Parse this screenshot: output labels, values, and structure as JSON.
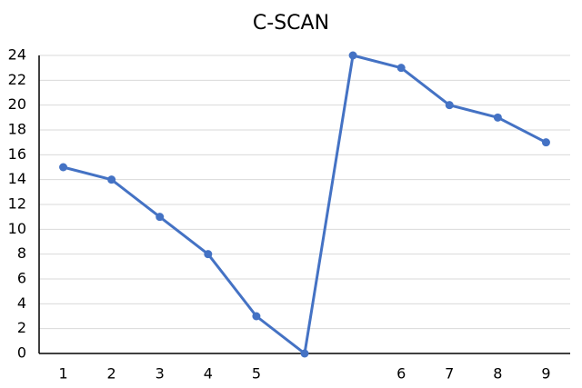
{
  "chart_data": {
    "type": "line",
    "title": "C-SCAN",
    "categories": [
      "1",
      "2",
      "3",
      "4",
      "5",
      null,
      null,
      "6",
      "7",
      "8",
      "9"
    ],
    "values": [
      15,
      14,
      11,
      8,
      3,
      0,
      24,
      23,
      20,
      19,
      17
    ],
    "color": "#4472c4",
    "ylim": [
      0,
      24
    ],
    "yticks": [
      0,
      2,
      4,
      6,
      8,
      10,
      12,
      14,
      16,
      18,
      20,
      22,
      24
    ],
    "grid": true
  }
}
